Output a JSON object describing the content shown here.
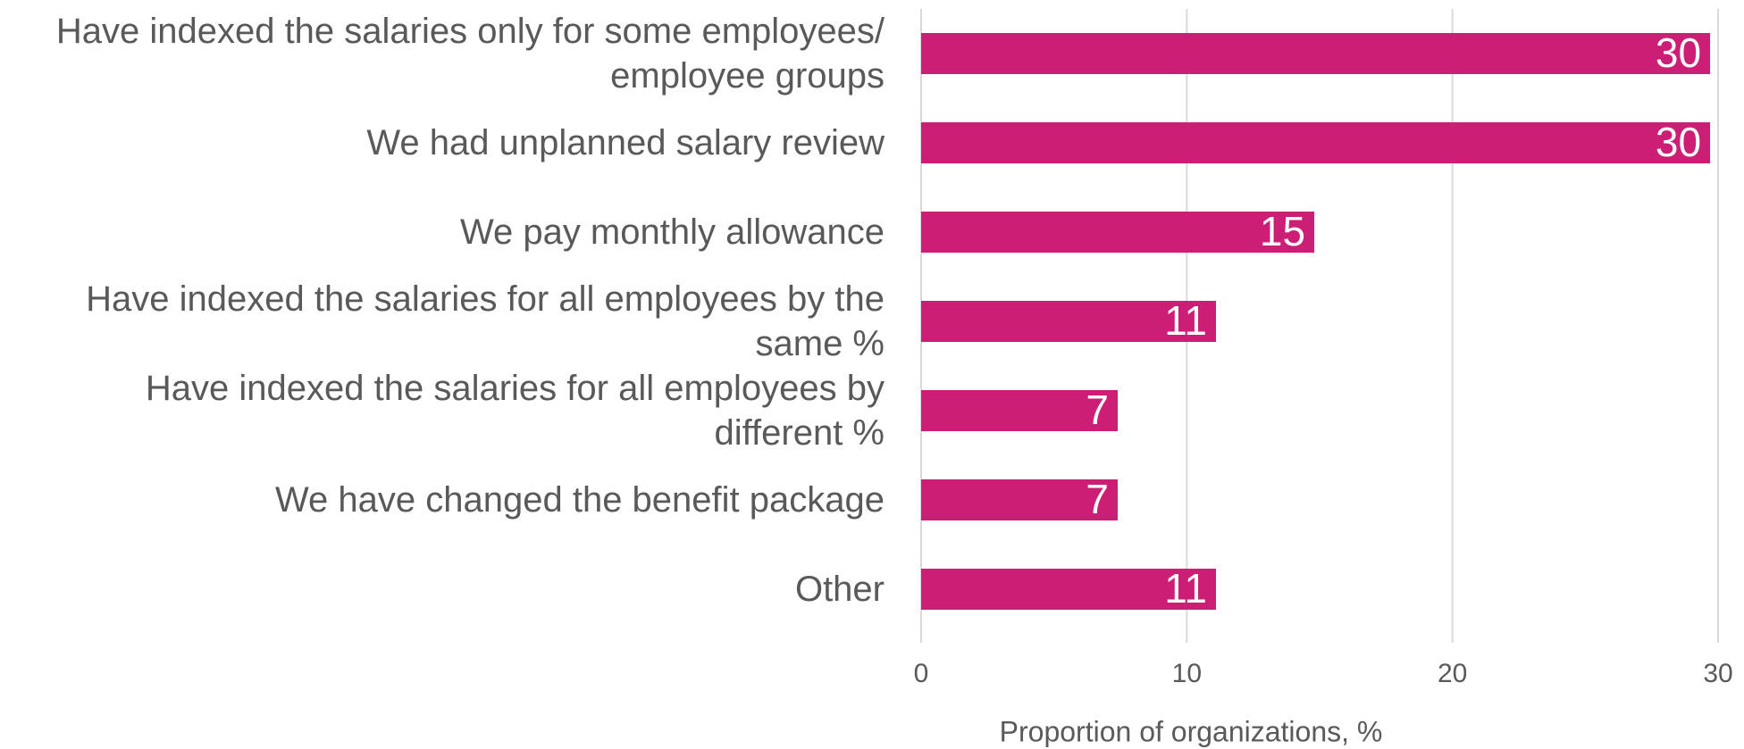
{
  "chart_data": {
    "type": "barh",
    "categories": [
      "Have indexed the salaries only for some employees/ employee groups",
      "We had unplanned salary review",
      "We pay monthly allowance",
      "Have indexed the salaries for all employees by the same %",
      "Have indexed the salaries for all employees by different %",
      "We have changed the benefit package",
      "Other "
    ],
    "values": [
      29.7,
      29.7,
      14.8,
      11.1,
      7.4,
      7.4,
      11.1
    ],
    "value_labels": [
      "30",
      "30",
      "15",
      "11",
      "7",
      "7",
      "11"
    ],
    "color": "#cd1e76",
    "xlim": [
      0,
      30
    ],
    "xticks": [
      0,
      10,
      20,
      30
    ],
    "grid": true,
    "xlabel": "Proportion of organizations, %"
  }
}
